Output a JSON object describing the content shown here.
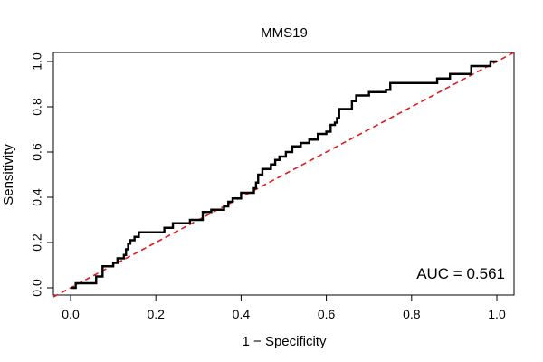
{
  "chart_data": {
    "type": "line",
    "title": "MMS19",
    "xlabel": "1 − Specificity",
    "ylabel": "Sensitivity",
    "xlim": [
      0,
      1
    ],
    "ylim": [
      0,
      1
    ],
    "x_ticks": [
      "0.0",
      "0.2",
      "0.4",
      "0.6",
      "0.8",
      "1.0"
    ],
    "y_ticks": [
      "0.0",
      "0.2",
      "0.4",
      "0.6",
      "0.8",
      "1.0"
    ],
    "grid": false,
    "annotation": "AUC = 0.561",
    "colors": {
      "roc": "#000000",
      "reference": "#e31a1c"
    },
    "reference_line": {
      "style": "dashed",
      "x": [
        0,
        1
      ],
      "y": [
        0,
        1
      ]
    },
    "series": [
      {
        "x": [
          0,
          0.012,
          0.012,
          0.03,
          0.03,
          0.06,
          0.06,
          0.075,
          0.075,
          0.1,
          0.1,
          0.11,
          0.11,
          0.125,
          0.125,
          0.13,
          0.13,
          0.135,
          0.135,
          0.14,
          0.14,
          0.15,
          0.15,
          0.16,
          0.16,
          0.22,
          0.22,
          0.24,
          0.24,
          0.28,
          0.28,
          0.31,
          0.31,
          0.33,
          0.33,
          0.36,
          0.36,
          0.37,
          0.37,
          0.38,
          0.38,
          0.4,
          0.4,
          0.43,
          0.43,
          0.435,
          0.435,
          0.44,
          0.44,
          0.45,
          0.45,
          0.47,
          0.47,
          0.48,
          0.48,
          0.49,
          0.49,
          0.505,
          0.505,
          0.52,
          0.52,
          0.54,
          0.54,
          0.56,
          0.56,
          0.58,
          0.58,
          0.6,
          0.6,
          0.61,
          0.61,
          0.62,
          0.62,
          0.625,
          0.625,
          0.63,
          0.63,
          0.66,
          0.66,
          0.67,
          0.67,
          0.7,
          0.7,
          0.74,
          0.74,
          0.75,
          0.75,
          0.86,
          0.86,
          0.89,
          0.89,
          0.94,
          0.94,
          0.985,
          0.985,
          1.0
        ],
        "y": [
          0,
          0,
          0.02,
          0.02,
          0.02,
          0.02,
          0.05,
          0.05,
          0.095,
          0.095,
          0.11,
          0.11,
          0.13,
          0.13,
          0.145,
          0.145,
          0.17,
          0.17,
          0.195,
          0.195,
          0.21,
          0.21,
          0.225,
          0.225,
          0.245,
          0.245,
          0.265,
          0.265,
          0.285,
          0.285,
          0.3,
          0.3,
          0.335,
          0.335,
          0.345,
          0.345,
          0.36,
          0.36,
          0.38,
          0.38,
          0.395,
          0.395,
          0.42,
          0.42,
          0.44,
          0.44,
          0.465,
          0.465,
          0.5,
          0.5,
          0.525,
          0.525,
          0.545,
          0.545,
          0.565,
          0.565,
          0.58,
          0.58,
          0.6,
          0.6,
          0.625,
          0.625,
          0.64,
          0.64,
          0.655,
          0.655,
          0.68,
          0.68,
          0.69,
          0.69,
          0.72,
          0.72,
          0.73,
          0.73,
          0.75,
          0.75,
          0.79,
          0.79,
          0.825,
          0.825,
          0.85,
          0.85,
          0.865,
          0.865,
          0.875,
          0.875,
          0.905,
          0.905,
          0.925,
          0.925,
          0.945,
          0.945,
          0.98,
          0.98,
          1.0,
          1.0
        ]
      }
    ]
  }
}
